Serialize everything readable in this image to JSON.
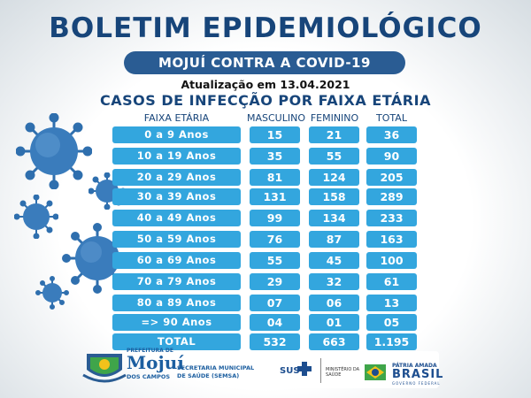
{
  "header": {
    "title": "BOLETIM EPIDEMIOLÓGICO",
    "campaign": "MOJUÍ CONTRA A COVID-19",
    "update": "Atualização em 13.04.2021",
    "subtitle": "CASOS DE INFECÇÃO POR FAIXA ETÁRIA"
  },
  "table": {
    "headers": {
      "age": "FAIXA ETÁRIA",
      "male": "MASCULINO",
      "female": "FEMININO",
      "total": "TOTAL"
    },
    "rows": [
      {
        "age": "0 a 9 Anos",
        "male": "15",
        "female": "21",
        "total": "36"
      },
      {
        "age": "10 a 19 Anos",
        "male": "35",
        "female": "55",
        "total": "90"
      },
      {
        "age": "20 a 29 Anos",
        "male": "81",
        "female": "124",
        "total": "205"
      },
      {
        "age": "30 a 39 Anos",
        "male": "131",
        "female": "158",
        "total": "289"
      },
      {
        "age": "40 a 49 Anos",
        "male": "99",
        "female": "134",
        "total": "233"
      },
      {
        "age": "50 a 59 Anos",
        "male": "76",
        "female": "87",
        "total": "163"
      },
      {
        "age": "60 a 69 Anos",
        "male": "55",
        "female": "45",
        "total": "100"
      },
      {
        "age": "70 a 79 Anos",
        "male": "29",
        "female": "32",
        "total": "61"
      },
      {
        "age": "80 a 89 Anos",
        "male": "07",
        "female": "06",
        "total": "13"
      },
      {
        "age": "=> 90 Anos",
        "male": "04",
        "female": "01",
        "total": "05"
      },
      {
        "age": "TOTAL",
        "male": "532",
        "female": "663",
        "total": "1.195"
      }
    ]
  },
  "footer": {
    "prefeitura": "PREFEITURA DE",
    "city": "Mojuí",
    "dos_campos": "DOS CAMPOS",
    "secretaria_line1": "SECRETARIA MUNICIPAL",
    "secretaria_line2": "DE SAÚDE (SEMSA)",
    "sus": "SUS",
    "ministerio_line1": "MINISTÉRIO DA",
    "ministerio_line2": "SAÚDE",
    "patria": "PÁTRIA AMADA",
    "brasil": "BRASIL",
    "governo": "GOVERNO FEDERAL"
  },
  "colors": {
    "title": "#17457a",
    "pill": "#2a5c93",
    "cell": "#33a6de",
    "virus": "#2f6fae"
  },
  "icons": [
    "coronavirus-icon",
    "municipal-crest-icon",
    "sus-cross-icon",
    "brazil-flag-icon"
  ]
}
